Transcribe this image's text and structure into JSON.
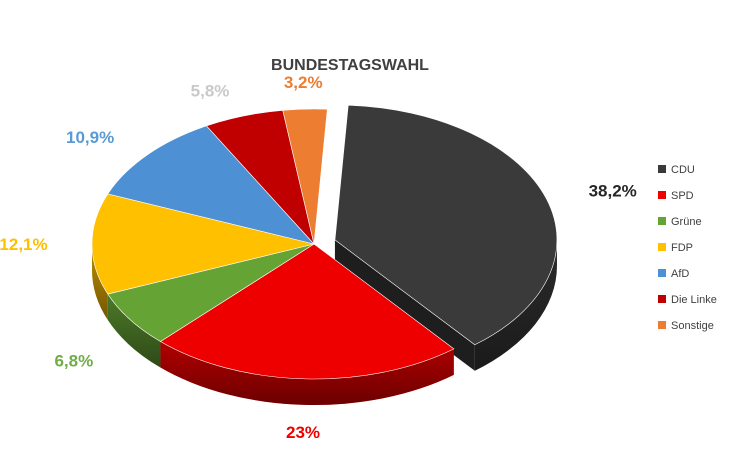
{
  "chart_data": {
    "type": "pie",
    "title": "BUNDESTAGSWAHL",
    "categories": [
      "CDU",
      "SPD",
      "Grüne",
      "FDP",
      "AfD",
      "Die Linke",
      "Sonstige"
    ],
    "values": [
      38.2,
      23,
      6.8,
      12.1,
      10.9,
      5.8,
      3.2
    ],
    "value_labels": [
      "38,2%",
      "23%",
      "6,8%",
      "12,1%",
      "10,9%",
      "5,8%",
      "3,2%"
    ],
    "colors": [
      "#3a3a3a",
      "#ee0000",
      "#66a335",
      "#ffc000",
      "#4d90d4",
      "#c00000",
      "#ed7d31"
    ],
    "label_colors": [
      "#262626",
      "#ee0000",
      "#70ad47",
      "#ffc000",
      "#5b9bd5",
      "#c9c9c9",
      "#ed7d31"
    ],
    "exploded": [
      "CDU"
    ],
    "style": "3d",
    "legend": "right"
  }
}
